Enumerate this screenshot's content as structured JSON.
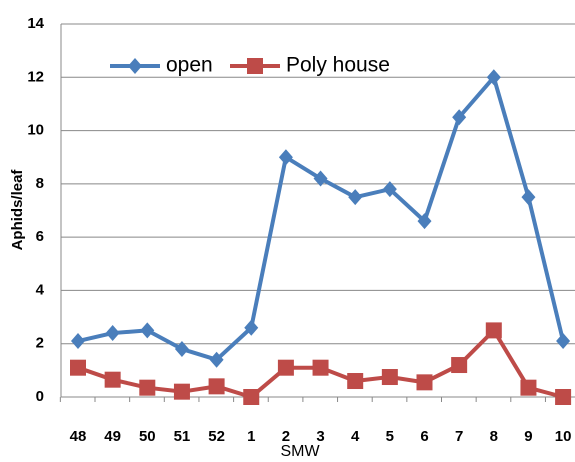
{
  "chart_data": {
    "type": "line",
    "categories": [
      "48",
      "49",
      "50",
      "51",
      "52",
      "1",
      "2",
      "3",
      "4",
      "5",
      "6",
      "7",
      "8",
      "9",
      "10"
    ],
    "series": [
      {
        "name": "open",
        "color": "#4a7ebb",
        "marker": "diamond",
        "values": [
          2.1,
          2.4,
          2.5,
          1.8,
          1.4,
          2.6,
          9.0,
          8.2,
          7.5,
          7.8,
          6.6,
          10.5,
          12.0,
          7.5,
          2.1
        ]
      },
      {
        "name": "Poly house",
        "color": "#be4b48",
        "marker": "square",
        "values": [
          1.1,
          0.65,
          0.35,
          0.2,
          0.4,
          0,
          1.1,
          1.1,
          0.6,
          0.75,
          0.55,
          1.2,
          2.5,
          0.35,
          0
        ]
      }
    ],
    "xlabel": "SMW",
    "ylabel": "Aphids/leaf",
    "ylim": [
      0,
      14
    ],
    "yticks": [
      0,
      2,
      4,
      6,
      8,
      10,
      12,
      14
    ],
    "grid": true,
    "legend": "top"
  }
}
